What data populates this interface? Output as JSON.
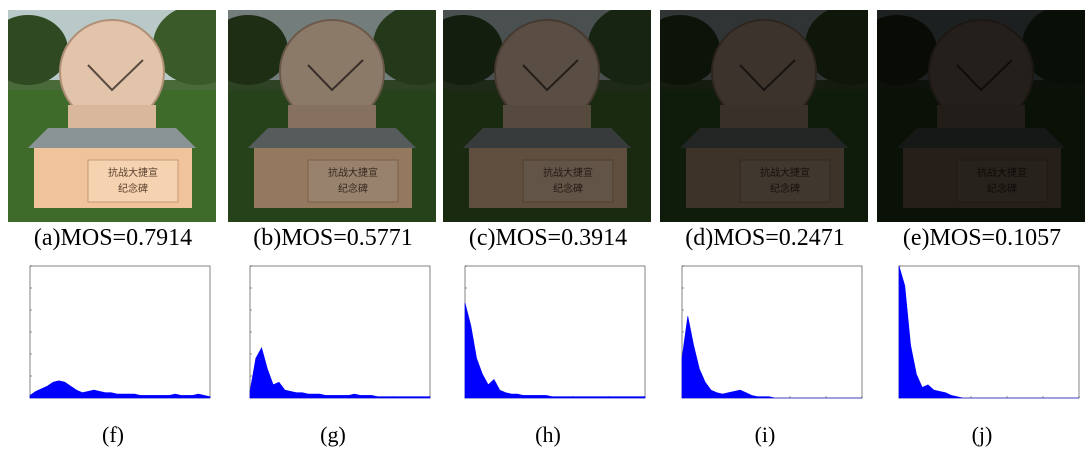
{
  "panels": [
    {
      "caption": "(a)MOS=0.7914",
      "hist_label": "(f)",
      "brightness": 1.0
    },
    {
      "caption": "(b)MOS=0.5771",
      "hist_label": "(g)",
      "brightness": 0.62
    },
    {
      "caption": "(c)MOS=0.3914",
      "hist_label": "(h)",
      "brightness": 0.4
    },
    {
      "caption": "(d)MOS=0.2471",
      "hist_label": "(i)",
      "brightness": 0.26
    },
    {
      "caption": "(e)MOS=0.1057",
      "hist_label": "(j)",
      "brightness": 0.16
    }
  ],
  "engraving": [
    "抗战大捷宣",
    "纪念碑"
  ],
  "hist_color": "#0000ff",
  "chart_data": [
    {
      "type": "area",
      "x_range": [
        0,
        255
      ],
      "y_range": [
        0,
        1
      ],
      "series": [
        {
          "values": [
            0.02,
            0.05,
            0.07,
            0.09,
            0.12,
            0.13,
            0.12,
            0.09,
            0.06,
            0.04,
            0.05,
            0.06,
            0.05,
            0.04,
            0.04,
            0.03,
            0.03,
            0.03,
            0.03,
            0.02,
            0.02,
            0.02,
            0.02,
            0.02,
            0.02,
            0.03,
            0.02,
            0.02,
            0.02,
            0.03,
            0.02,
            0.01
          ]
        }
      ]
    },
    {
      "type": "area",
      "x_range": [
        0,
        255
      ],
      "y_range": [
        0,
        1
      ],
      "series": [
        {
          "values": [
            0.05,
            0.3,
            0.38,
            0.22,
            0.1,
            0.12,
            0.06,
            0.05,
            0.04,
            0.04,
            0.03,
            0.03,
            0.03,
            0.02,
            0.02,
            0.02,
            0.02,
            0.02,
            0.03,
            0.02,
            0.02,
            0.02,
            0.01,
            0.01,
            0.01,
            0.01,
            0.01,
            0.01,
            0.01,
            0.01,
            0.01,
            0.01
          ]
        }
      ]
    },
    {
      "type": "area",
      "x_range": [
        0,
        255
      ],
      "y_range": [
        0,
        1
      ],
      "series": [
        {
          "values": [
            0.72,
            0.55,
            0.3,
            0.18,
            0.1,
            0.14,
            0.06,
            0.04,
            0.03,
            0.03,
            0.02,
            0.02,
            0.02,
            0.02,
            0.02,
            0.01,
            0.01,
            0.01,
            0.01,
            0.01,
            0.01,
            0.01,
            0.01,
            0.01,
            0.01,
            0.01,
            0.01,
            0.01,
            0.01,
            0.01,
            0.01,
            0.01
          ]
        }
      ]
    },
    {
      "type": "area",
      "x_range": [
        0,
        255
      ],
      "y_range": [
        0,
        1
      ],
      "series": [
        {
          "values": [
            0.3,
            0.62,
            0.4,
            0.22,
            0.12,
            0.06,
            0.04,
            0.03,
            0.04,
            0.05,
            0.06,
            0.04,
            0.02,
            0.01,
            0.01,
            0.01,
            0.0,
            0.0,
            0.0,
            0.0,
            0.0,
            0.0,
            0.0,
            0.0,
            0.0,
            0.0,
            0.0,
            0.0,
            0.0,
            0.0,
            0.0,
            0.0
          ]
        }
      ]
    },
    {
      "type": "area",
      "x_range": [
        0,
        255
      ],
      "y_range": [
        0,
        1
      ],
      "series": [
        {
          "values": [
            1.0,
            0.85,
            0.4,
            0.18,
            0.08,
            0.1,
            0.06,
            0.05,
            0.04,
            0.02,
            0.01,
            0.0,
            0.0,
            0.0,
            0.0,
            0.0,
            0.0,
            0.0,
            0.0,
            0.0,
            0.0,
            0.0,
            0.0,
            0.0,
            0.0,
            0.0,
            0.0,
            0.0,
            0.0,
            0.0,
            0.0,
            0.0
          ]
        }
      ]
    }
  ]
}
